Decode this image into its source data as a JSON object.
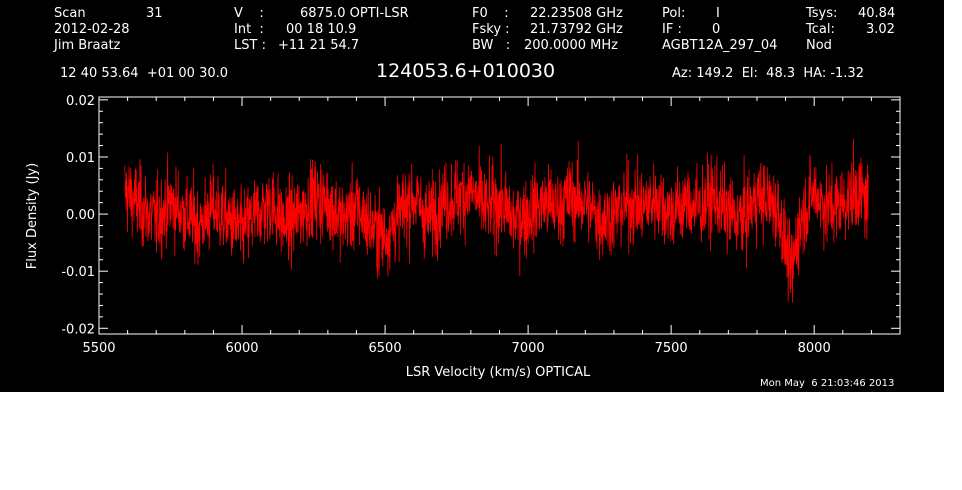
{
  "header": {
    "scan_label": "Scan",
    "scan_value": "31",
    "date": "2012-02-28",
    "observer": "Jim Braatz",
    "v_label": "V    :",
    "v_value": "6875.0 OPTI-LSR",
    "int_label": "Int  :",
    "int_value": "00 18 10.9",
    "lst_label": "LST :",
    "lst_value": "+11 21 54.7",
    "f0_label": "F0    :",
    "f0_value": "22.23508 GHz",
    "fsky_label": "Fsky :",
    "fsky_value": "21.73792 GHz",
    "bw_label": "BW   :",
    "bw_value": "200.0000 MHz",
    "pol_label": "Pol:",
    "pol_value": "I",
    "if_label": "IF :",
    "if_value": "0",
    "project": "AGBT12A_297_04",
    "tsys_label": "Tsys:",
    "tsys_value": "40.84",
    "tcal_label": "Tcal:",
    "tcal_value": "3.02",
    "proc": "Nod",
    "coords": "12 40 53.64  +01 00 30.0",
    "source": "124053.6+010030",
    "az_el_ha": "Az: 149.2  El:  48.3  HA: -1.32",
    "timestamp": "Mon May  6 21:03:46 2013"
  },
  "chart_data": {
    "type": "line",
    "title": "124053.6+010030",
    "xlabel": "LSR Velocity (km/s) OPTICAL",
    "ylabel": "Flux Density (Jy)",
    "xlim": [
      5500,
      8300
    ],
    "ylim": [
      -0.021,
      0.0205
    ],
    "xticks": [
      5500,
      6000,
      6500,
      7000,
      7500,
      8000
    ],
    "xtick_labels": [
      "5500",
      "6000",
      "6500",
      "7000",
      "7500",
      "8000"
    ],
    "yticks": [
      -0.02,
      -0.01,
      0.0,
      0.01,
      0.02
    ],
    "ytick_labels": [
      "-0.02",
      "-0.01",
      "0.00",
      "0.01",
      "0.02"
    ],
    "grid": false,
    "colors": {
      "background": "#000000",
      "axes": "#ffffff",
      "series": "#ff0000"
    },
    "series": [
      {
        "x": [
          5590,
          5650,
          5700,
          5750,
          5800,
          5850,
          5900,
          5950,
          6000,
          6050,
          6100,
          6150,
          6200,
          6250,
          6300,
          6350,
          6400,
          6450,
          6500,
          6550,
          6600,
          6650,
          6700,
          6750,
          6800,
          6850,
          6900,
          6950,
          7000,
          7050,
          7100,
          7150,
          7200,
          7250,
          7300,
          7350,
          7400,
          7450,
          7500,
          7550,
          7600,
          7650,
          7700,
          7750,
          7800,
          7850,
          7880,
          7900,
          7920,
          7940,
          7960,
          8000,
          8050,
          8100,
          8150,
          8190
        ],
        "y": [
          0.004,
          0.001,
          -0.001,
          0.002,
          0.0,
          -0.002,
          0.001,
          -0.001,
          -0.003,
          0.0,
          0.002,
          -0.002,
          0.0,
          0.003,
          0.002,
          -0.001,
          0.001,
          -0.002,
          -0.004,
          0.0,
          0.003,
          -0.001,
          0.002,
          0.003,
          0.004,
          0.001,
          0.002,
          -0.001,
          0.0,
          0.002,
          0.001,
          0.003,
          0.002,
          -0.001,
          0.0,
          0.002,
          0.001,
          0.003,
          0.0,
          0.002,
          0.001,
          0.003,
          0.0,
          -0.001,
          0.003,
          0.002,
          0.0,
          -0.006,
          -0.011,
          -0.004,
          0.0,
          0.004,
          0.001,
          0.002,
          0.004,
          0.002
        ],
        "noise_rms": 0.004
      }
    ]
  }
}
